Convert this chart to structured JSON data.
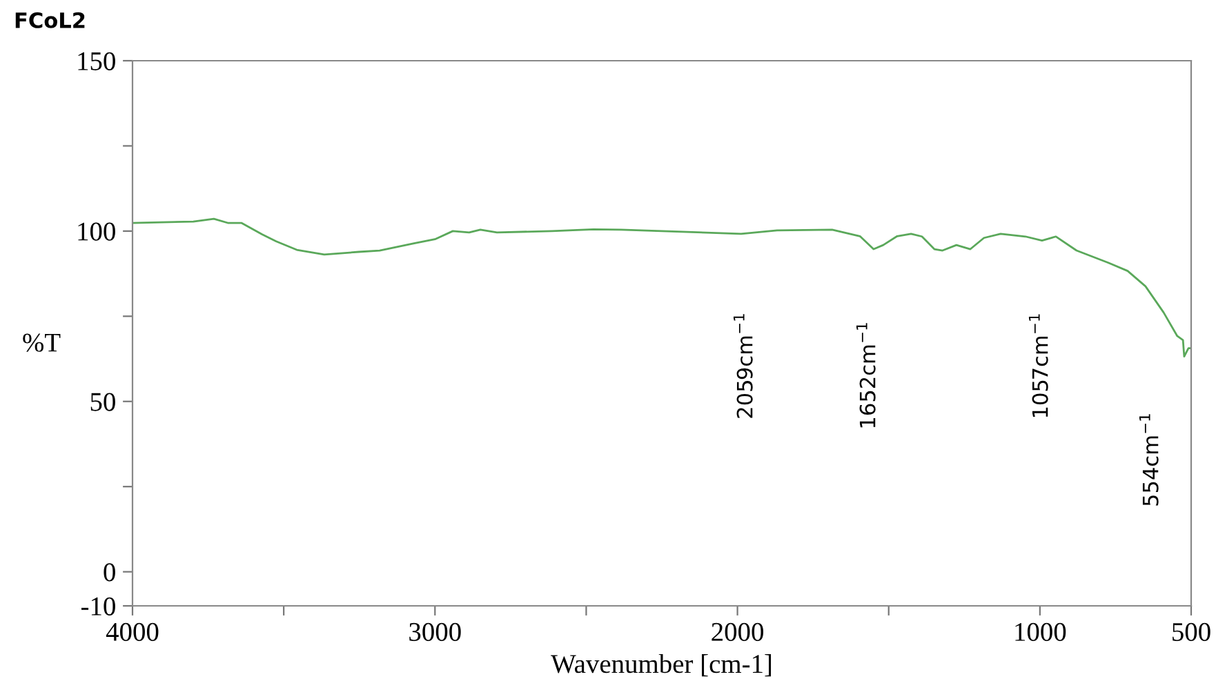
{
  "chart_data": {
    "type": "line",
    "title": "FCoL2",
    "xlabel": "Wavenumber [cm-1]",
    "ylabel": "%T",
    "xlim": [
      4000,
      500
    ],
    "xticks": [
      4000,
      {
        "value": 3500,
        "label": null
      },
      3000,
      {
        "value": 2500,
        "label": null
      },
      2000,
      {
        "value": 1500,
        "label": null
      },
      1000,
      500
    ],
    "ylim": [
      -10,
      150
    ],
    "yticks": [
      -10,
      0,
      {
        "value": 25,
        "label": null
      },
      50,
      {
        "value": 75,
        "label": null
      },
      100,
      {
        "value": 125,
        "label": null
      },
      150
    ],
    "grid": false,
    "legend": false,
    "marker": "none",
    "line_style": "solid",
    "series": [
      {
        "color": "#5aa85a",
        "x": [
          4000,
          3799,
          3731,
          3685,
          3640,
          3571,
          3525,
          3457,
          3366,
          3252,
          3183,
          3069,
          3000,
          2941,
          2887,
          2850,
          2795,
          2613,
          2476,
          2385,
          1988,
          1869,
          1687,
          1595,
          1550,
          1518,
          1472,
          1426,
          1390,
          1349,
          1322,
          1276,
          1230,
          1185,
          1130,
          1048,
          993,
          947,
          879,
          774,
          710,
          651,
          591,
          546,
          527,
          523,
          509,
          500
        ],
        "values": [
          102.4,
          102.8,
          103.6,
          102.4,
          102.4,
          99,
          97,
          94.5,
          93.1,
          93.9,
          94.3,
          96.4,
          97.6,
          100,
          99.6,
          100.4,
          99.6,
          100,
          100.5,
          100.4,
          99.2,
          100.2,
          100.4,
          98.5,
          94.7,
          95.9,
          98.5,
          99.2,
          98.4,
          94.7,
          94.3,
          95.9,
          94.7,
          98,
          99.2,
          98.4,
          97.2,
          98.4,
          94.3,
          90.7,
          88.3,
          83.8,
          76.1,
          69.2,
          68,
          63.2,
          65.6,
          65.6
        ]
      }
    ],
    "annotations": [
      "2059cm$^{−1}$",
      "1652cm$^{−1}$",
      "1057cm$^{−1}$",
      "554cm$^{−1}$"
    ]
  }
}
